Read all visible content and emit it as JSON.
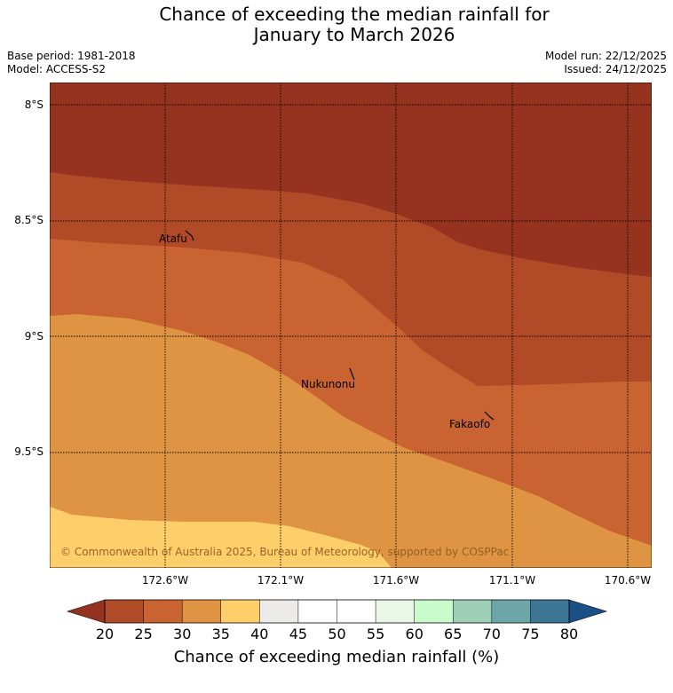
{
  "title_line1": "Chance of exceeding the median rainfall for",
  "title_line2": "January to March 2026",
  "meta_left": [
    "Base period: 1981-2018",
    "Model: ACCESS-S2"
  ],
  "meta_right": [
    "Model run: 22/12/2025",
    "Issued: 24/12/2025"
  ],
  "map": {
    "lat_labels": [
      "8°S",
      "8.5°S",
      "9°S",
      "9.5°S"
    ],
    "lon_labels": [
      "172.6°W",
      "172.1°W",
      "171.6°W",
      "171.1°W",
      "170.6°W"
    ],
    "places": [
      "Atafu",
      "Nukunonu",
      "Fakaofo"
    ],
    "copyright": "© Commonwealth of Australia 2025, Bureau of Meteorology, supported by COSPPac",
    "zone_colors": {
      "lt25": "#963320",
      "p25_30": "#b14a26",
      "p30_35": "#c96331",
      "p35_40": "#df9443",
      "p40_45": "#fece6b"
    }
  },
  "colorbar": {
    "ticks": [
      "20",
      "25",
      "30",
      "35",
      "40",
      "45",
      "50",
      "55",
      "60",
      "65",
      "70",
      "75",
      "80"
    ],
    "colors": [
      "#b14a26",
      "#c96331",
      "#df9443",
      "#fece6b",
      "#ecebe8",
      "#ffffff",
      "#ffffff",
      "#eaf6e8",
      "#c8fccb",
      "#9ed0b8",
      "#6da6a9",
      "#3d7595"
    ],
    "under_color": "#963320",
    "over_color": "#1a5086",
    "label": "Chance of exceeding median rainfall (%)"
  }
}
